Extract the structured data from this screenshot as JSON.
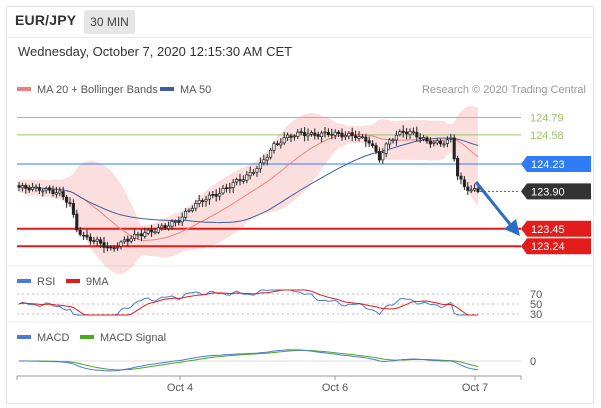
{
  "header": {
    "symbol": "EUR/JPY",
    "timeframe": "30 MIN",
    "datetime": "Wednesday, October 7, 2020 12:15:30 AM CET"
  },
  "colors": {
    "bollinger": "#f08080",
    "ma50": "#3e5f99",
    "resistance": "#9dc46a",
    "pivot": "#2f7bf5",
    "support": "#e21b1b",
    "last": "#333333",
    "rsi": "#4a7bd6",
    "rsi_ma": "#e21b1b",
    "macd": "#4a7bd6",
    "macd_signal": "#4aa820",
    "arrow": "#2b6cc4"
  },
  "chart_data": [
    {
      "type": "candlestick",
      "title": "",
      "legend": [
        {
          "name": "MA 20 + Bollinger Bands",
          "color": "#f08080"
        },
        {
          "name": "MA 50",
          "color": "#3e5f99"
        }
      ],
      "credit": "Research © 2020 Trading Central",
      "x_ticks": [
        "Oct 4",
        "Oct 6",
        "Oct 7"
      ],
      "y_range": [
        123.05,
        125.0
      ],
      "levels": [
        {
          "label": "124.79",
          "value": 124.79,
          "kind": "resistance"
        },
        {
          "label": "124.58",
          "value": 124.58,
          "kind": "resistance"
        },
        {
          "label": "124.23",
          "value": 124.23,
          "kind": "pivot"
        },
        {
          "label": "123.90",
          "value": 123.9,
          "kind": "last"
        },
        {
          "label": "123.45",
          "value": 123.45,
          "kind": "support"
        },
        {
          "label": "123.24",
          "value": 123.24,
          "kind": "support"
        }
      ],
      "price_anchors": [
        [
          0,
          123.95
        ],
        [
          6,
          123.93
        ],
        [
          12,
          123.88
        ],
        [
          15,
          123.75
        ],
        [
          17,
          123.45
        ],
        [
          19,
          123.35
        ],
        [
          23,
          123.3
        ],
        [
          27,
          123.2
        ],
        [
          31,
          123.3
        ],
        [
          35,
          123.38
        ],
        [
          39,
          123.42
        ],
        [
          43,
          123.48
        ],
        [
          47,
          123.55
        ],
        [
          51,
          123.72
        ],
        [
          55,
          123.82
        ],
        [
          59,
          123.88
        ],
        [
          63,
          124.0
        ],
        [
          67,
          124.08
        ],
        [
          71,
          124.22
        ],
        [
          75,
          124.45
        ],
        [
          79,
          124.56
        ],
        [
          83,
          124.6
        ],
        [
          87,
          124.58
        ],
        [
          91,
          124.6
        ],
        [
          95,
          124.58
        ],
        [
          99,
          124.57
        ],
        [
          103,
          124.5
        ],
        [
          106,
          124.3
        ],
        [
          109,
          124.52
        ],
        [
          113,
          124.62
        ],
        [
          116,
          124.6
        ],
        [
          120,
          124.5
        ],
        [
          124,
          124.48
        ],
        [
          127,
          124.52
        ],
        [
          129,
          124.1
        ],
        [
          131,
          123.95
        ],
        [
          133,
          123.92
        ],
        [
          135,
          123.9
        ]
      ]
    },
    {
      "type": "line",
      "title": "",
      "legend": [
        {
          "name": "RSI",
          "color": "#4a7bd6"
        },
        {
          "name": "9MA",
          "color": "#e21b1b"
        }
      ],
      "y_ticks": [
        "70",
        "50",
        "30"
      ]
    },
    {
      "type": "line",
      "title": "",
      "legend": [
        {
          "name": "MACD",
          "color": "#4a7bd6"
        },
        {
          "name": "MACD Signal",
          "color": "#4aa820"
        }
      ],
      "y_ticks": [
        "0"
      ]
    }
  ]
}
